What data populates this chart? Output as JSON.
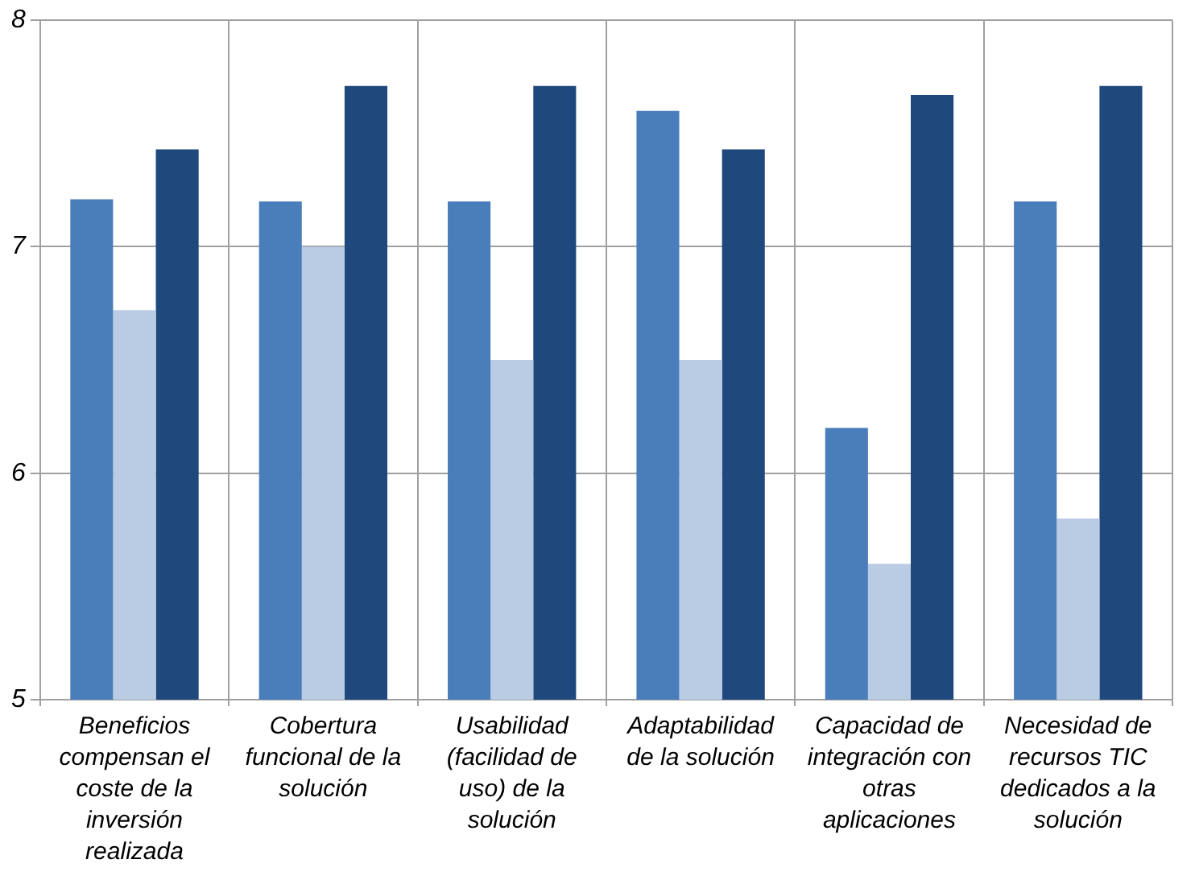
{
  "chart_data": {
    "type": "bar",
    "categories": [
      "Beneficios compensan el coste de la inversión realizada",
      "Cobertura funcional de la solución",
      "Usabilidad (facilidad de uso) de la solución",
      "Adaptabilidad de la solución",
      "Capacidad de integración con otras aplicaciones",
      "Necesidad de recursos TIC dedicados a la solución"
    ],
    "series": [
      {
        "color": "#4a7ebb",
        "values": [
          7.21,
          7.2,
          7.2,
          7.6,
          6.2,
          7.2
        ]
      },
      {
        "color": "#b9cce4",
        "values": [
          6.72,
          7.0,
          6.5,
          6.5,
          5.6,
          5.8
        ]
      },
      {
        "color": "#1f497d",
        "values": [
          7.43,
          7.71,
          7.71,
          7.43,
          7.67,
          7.71
        ]
      }
    ],
    "ylim": [
      5,
      8
    ],
    "yticks": [
      5,
      6,
      7,
      8
    ],
    "grid": true,
    "legend": false
  }
}
